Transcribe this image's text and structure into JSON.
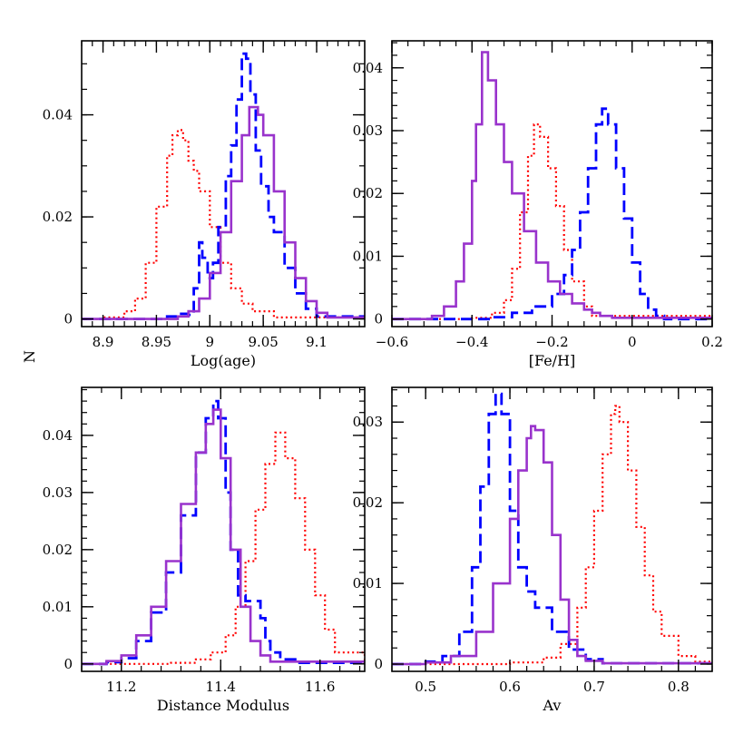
{
  "figure": {
    "shared_ylabel": "N"
  },
  "chart_data": [
    {
      "type": "line",
      "panel": "top-left",
      "xlabel": "Log(age)",
      "ylabel": "N",
      "xlim": [
        8.88,
        9.145
      ],
      "ylim": [
        -0.0015,
        0.0545
      ],
      "xticks": [
        8.9,
        8.95,
        9,
        9.05,
        9.1
      ],
      "xtick_labels": [
        "8.9",
        "8.95",
        "9",
        "9.05",
        "9.1"
      ],
      "yticks": [
        0,
        0.02,
        0.04
      ],
      "ytick_labels": [
        "0",
        "0.02",
        "0.04"
      ],
      "series": [
        {
          "style": "red-dotted",
          "color": "#ff0000",
          "x": [
            8.88,
            8.9,
            8.92,
            8.93,
            8.94,
            8.95,
            8.96,
            8.965,
            8.97,
            8.975,
            8.98,
            8.985,
            8.99,
            9.0,
            9.01,
            9.02,
            9.03,
            9.04,
            9.06,
            9.145
          ],
          "y": [
            0,
            0.0003,
            0.0015,
            0.004,
            0.011,
            0.022,
            0.032,
            0.036,
            0.037,
            0.035,
            0.031,
            0.029,
            0.025,
            0.018,
            0.011,
            0.006,
            0.003,
            0.0015,
            0.0003,
            0
          ]
        },
        {
          "style": "blue-dashed",
          "color": "#0000ff",
          "x": [
            8.88,
            8.96,
            8.97,
            8.98,
            8.985,
            8.99,
            8.993,
            8.998,
            9.003,
            9.008,
            9.015,
            9.02,
            9.025,
            9.03,
            9.034,
            9.038,
            9.043,
            9.048,
            9.055,
            9.06,
            9.07,
            9.08,
            9.09,
            9.1,
            9.145
          ],
          "y": [
            0,
            0.0005,
            0.001,
            0.0008,
            0.006,
            0.015,
            0.012,
            0.008,
            0.011,
            0.018,
            0.028,
            0.034,
            0.043,
            0.052,
            0.051,
            0.044,
            0.033,
            0.026,
            0.02,
            0.017,
            0.01,
            0.005,
            0.002,
            0.0005,
            0
          ]
        },
        {
          "style": "purple-solid",
          "color": "#9933cc",
          "x": [
            8.88,
            8.97,
            8.98,
            8.99,
            9.0,
            9.01,
            9.02,
            9.03,
            9.037,
            9.045,
            9.05,
            9.06,
            9.07,
            9.08,
            9.09,
            9.1,
            9.11,
            9.145
          ],
          "y": [
            0,
            0.0005,
            0.0015,
            0.004,
            0.009,
            0.017,
            0.027,
            0.036,
            0.0415,
            0.04,
            0.036,
            0.025,
            0.015,
            0.008,
            0.0035,
            0.0012,
            0.0003,
            0
          ]
        }
      ]
    },
    {
      "type": "line",
      "panel": "top-right",
      "xlabel": "[Fe/H]",
      "ylabel": "",
      "xlim": [
        -0.6,
        0.2
      ],
      "ylim": [
        -0.0012,
        0.0443
      ],
      "xticks": [
        -0.6,
        -0.4,
        -0.2,
        0,
        0.2
      ],
      "xtick_labels": [
        "−0.6",
        "−0.4",
        "−0.2",
        "0",
        "0.2"
      ],
      "yticks": [
        0,
        0.01,
        0.02,
        0.03,
        0.04
      ],
      "ytick_labels": [
        "0",
        "0.01",
        "0.02",
        "0.03",
        "0.04"
      ],
      "series": [
        {
          "style": "red-dotted",
          "color": "#ff0000",
          "x": [
            -0.6,
            -0.4,
            -0.35,
            -0.32,
            -0.3,
            -0.28,
            -0.26,
            -0.245,
            -0.23,
            -0.21,
            -0.19,
            -0.17,
            -0.15,
            -0.12,
            -0.1,
            0.2
          ],
          "y": [
            0,
            0.0002,
            0.001,
            0.003,
            0.008,
            0.017,
            0.026,
            0.031,
            0.029,
            0.024,
            0.018,
            0.011,
            0.006,
            0.002,
            0.0005,
            0
          ]
        },
        {
          "style": "blue-dashed",
          "color": "#0000ff",
          "x": [
            -0.6,
            -0.35,
            -0.3,
            -0.25,
            -0.2,
            -0.17,
            -0.15,
            -0.13,
            -0.11,
            -0.09,
            -0.075,
            -0.06,
            -0.04,
            -0.02,
            0.0,
            0.02,
            0.04,
            0.06,
            0.08,
            0.2
          ],
          "y": [
            0,
            0.0003,
            0.001,
            0.002,
            0.004,
            0.007,
            0.011,
            0.017,
            0.024,
            0.031,
            0.0335,
            0.031,
            0.024,
            0.016,
            0.009,
            0.004,
            0.0015,
            0.0005,
            0,
            0
          ]
        },
        {
          "style": "purple-solid",
          "color": "#9933cc",
          "x": [
            -0.6,
            -0.5,
            -0.47,
            -0.44,
            -0.42,
            -0.4,
            -0.39,
            -0.375,
            -0.36,
            -0.34,
            -0.32,
            -0.3,
            -0.27,
            -0.24,
            -0.21,
            -0.18,
            -0.15,
            -0.12,
            -0.1,
            -0.08,
            -0.05,
            0.2
          ],
          "y": [
            0,
            0.0005,
            0.002,
            0.006,
            0.012,
            0.022,
            0.031,
            0.0425,
            0.038,
            0.031,
            0.025,
            0.02,
            0.014,
            0.009,
            0.006,
            0.004,
            0.0025,
            0.0015,
            0.001,
            0.0005,
            0.0002,
            0
          ]
        }
      ]
    },
    {
      "type": "line",
      "panel": "bottom-left",
      "xlabel": "Distance Modulus",
      "ylabel": "",
      "xlim": [
        11.12,
        11.69
      ],
      "ylim": [
        -0.0013,
        0.0484
      ],
      "xticks": [
        11.2,
        11.4,
        11.6
      ],
      "xtick_labels": [
        "11.2",
        "11.4",
        "11.6"
      ],
      "yticks": [
        0,
        0.01,
        0.02,
        0.03,
        0.04
      ],
      "ytick_labels": [
        "0",
        "0.01",
        "0.02",
        "0.03",
        "0.04"
      ],
      "series": [
        {
          "style": "red-dotted",
          "color": "#ff0000",
          "x": [
            11.12,
            11.3,
            11.35,
            11.38,
            11.41,
            11.43,
            11.45,
            11.47,
            11.49,
            11.51,
            11.53,
            11.55,
            11.57,
            11.59,
            11.61,
            11.63,
            11.69
          ],
          "y": [
            0,
            0.0002,
            0.0008,
            0.002,
            0.005,
            0.01,
            0.018,
            0.027,
            0.035,
            0.0405,
            0.036,
            0.029,
            0.02,
            0.012,
            0.006,
            0.002,
            0
          ]
        },
        {
          "style": "blue-dashed",
          "color": "#0000ff",
          "x": [
            11.12,
            11.17,
            11.2,
            11.23,
            11.26,
            11.29,
            11.32,
            11.35,
            11.37,
            11.385,
            11.395,
            11.41,
            11.42,
            11.435,
            11.45,
            11.47,
            11.48,
            11.49,
            11.5,
            11.52,
            11.55,
            11.69
          ],
          "y": [
            0,
            0.0003,
            0.001,
            0.004,
            0.009,
            0.016,
            0.026,
            0.037,
            0.043,
            0.046,
            0.043,
            0.03,
            0.02,
            0.012,
            0.011,
            0.011,
            0.008,
            0.004,
            0.002,
            0.0008,
            0.0002,
            0
          ]
        },
        {
          "style": "purple-solid",
          "color": "#9933cc",
          "x": [
            11.12,
            11.17,
            11.2,
            11.23,
            11.26,
            11.29,
            11.32,
            11.35,
            11.37,
            11.385,
            11.4,
            11.42,
            11.44,
            11.46,
            11.48,
            11.5,
            11.69
          ],
          "y": [
            0,
            0.0005,
            0.0015,
            0.005,
            0.01,
            0.018,
            0.028,
            0.037,
            0.042,
            0.0445,
            0.036,
            0.02,
            0.01,
            0.004,
            0.0015,
            0.0004,
            0
          ]
        }
      ]
    },
    {
      "type": "line",
      "panel": "bottom-right",
      "xlabel": "Av",
      "ylabel": "",
      "xlim": [
        0.46,
        0.84
      ],
      "ylim": [
        -0.0009,
        0.0343
      ],
      "xticks": [
        0.5,
        0.6,
        0.7,
        0.8
      ],
      "xtick_labels": [
        "0.5",
        "0.6",
        "0.7",
        "0.8"
      ],
      "yticks": [
        0,
        0.01,
        0.02,
        0.03
      ],
      "ytick_labels": [
        "0",
        "0.01",
        "0.02",
        "0.03"
      ],
      "series": [
        {
          "style": "red-dotted",
          "color": "#ff0000",
          "x": [
            0.46,
            0.6,
            0.64,
            0.66,
            0.68,
            0.69,
            0.7,
            0.71,
            0.72,
            0.725,
            0.73,
            0.74,
            0.75,
            0.76,
            0.77,
            0.78,
            0.8,
            0.82,
            0.84
          ],
          "y": [
            0,
            0.0002,
            0.0008,
            0.0025,
            0.007,
            0.012,
            0.019,
            0.026,
            0.031,
            0.032,
            0.03,
            0.024,
            0.017,
            0.011,
            0.0065,
            0.0035,
            0.001,
            0.0003,
            0
          ]
        },
        {
          "style": "blue-dashed",
          "color": "#0000ff",
          "x": [
            0.46,
            0.5,
            0.52,
            0.54,
            0.555,
            0.565,
            0.575,
            0.583,
            0.59,
            0.6,
            0.61,
            0.62,
            0.63,
            0.65,
            0.67,
            0.69,
            0.71,
            0.84
          ],
          "y": [
            0,
            0.0003,
            0.001,
            0.004,
            0.012,
            0.022,
            0.031,
            0.0335,
            0.031,
            0.019,
            0.012,
            0.009,
            0.007,
            0.004,
            0.0018,
            0.0006,
            0.0001,
            0
          ]
        },
        {
          "style": "purple-solid",
          "color": "#9933cc",
          "x": [
            0.46,
            0.5,
            0.53,
            0.56,
            0.58,
            0.6,
            0.61,
            0.62,
            0.625,
            0.63,
            0.64,
            0.65,
            0.66,
            0.67,
            0.68,
            0.69,
            0.71,
            0.84
          ],
          "y": [
            0,
            0.0002,
            0.001,
            0.004,
            0.01,
            0.018,
            0.024,
            0.028,
            0.0295,
            0.029,
            0.025,
            0.016,
            0.008,
            0.003,
            0.001,
            0.0004,
            0.0001,
            0
          ]
        }
      ]
    }
  ]
}
